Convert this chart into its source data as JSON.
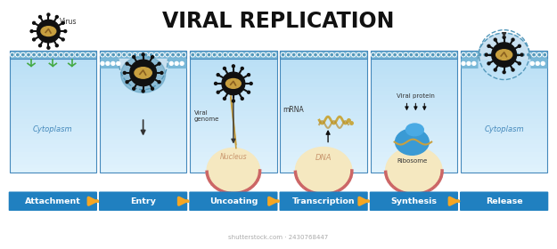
{
  "title": "VIRAL REPLICATION",
  "title_fontsize": 17,
  "title_fontweight": "bold",
  "background_color": "#ffffff",
  "steps": [
    "Attachment",
    "Entry",
    "Uncoating",
    "Transcription",
    "Synthesis",
    "Release"
  ],
  "step_box_color": "#2080c0",
  "step_text_color": "#ffffff",
  "arrow_color": "#f5a623",
  "cell_fill_top": "#c8e0f0",
  "cell_fill_bottom": "#e8f4fc",
  "cell_border_color": "#5599cc",
  "membrane_fill": "#a8cce0",
  "membrane_dot_color": "#ffffff",
  "nucleus_fill": "#f5e8c0",
  "nucleus_border": "#d4956c",
  "watermark": "shutterstock.com · 2430768447"
}
